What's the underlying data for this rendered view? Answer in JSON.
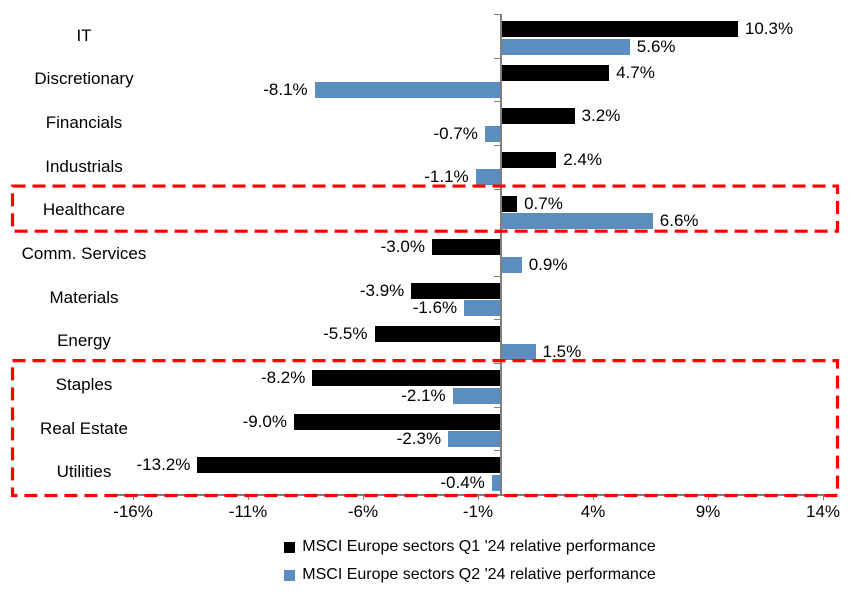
{
  "chart_data": {
    "type": "bar",
    "orientation": "horizontal",
    "categories": [
      "IT",
      "Discretionary",
      "Financials",
      "Industrials",
      "Healthcare",
      "Comm. Services",
      "Materials",
      "Energy",
      "Staples",
      "Real Estate",
      "Utilities"
    ],
    "series": [
      {
        "name": "MSCI Europe sectors Q1 '24 relative performance",
        "color": "#000000",
        "values": [
          10.3,
          4.7,
          3.2,
          2.4,
          0.7,
          -3.0,
          -3.9,
          -5.5,
          -8.2,
          -9.0,
          -13.2
        ]
      },
      {
        "name": "MSCI Europe sectors Q2 '24 relative performance",
        "color": "#5B8DBE",
        "values": [
          5.6,
          -8.1,
          -0.7,
          -1.1,
          6.6,
          0.9,
          -1.6,
          1.5,
          -2.1,
          -2.3,
          -0.4
        ]
      }
    ],
    "data_labels": {
      "show": true,
      "format": "0.0%"
    },
    "x_axis": {
      "tick_values": [
        -16,
        -11,
        -6,
        -1,
        4,
        9,
        14
      ],
      "tick_labels": [
        "-16%",
        "-11%",
        "-6%",
        "-1%",
        "4%",
        "9%",
        "14%"
      ],
      "min": -17,
      "max": 14.6
    },
    "axis_color": "#808080",
    "grid": false,
    "legend_position": "bottom",
    "highlights": [
      {
        "name": "healthcare-box",
        "first_category": "Healthcare",
        "last_category": "Healthcare",
        "color": "#FF0000",
        "style": "dashed"
      },
      {
        "name": "defensives-box",
        "first_category": "Staples",
        "last_category": "Utilities",
        "color": "#FF0000",
        "style": "dashed"
      }
    ]
  }
}
